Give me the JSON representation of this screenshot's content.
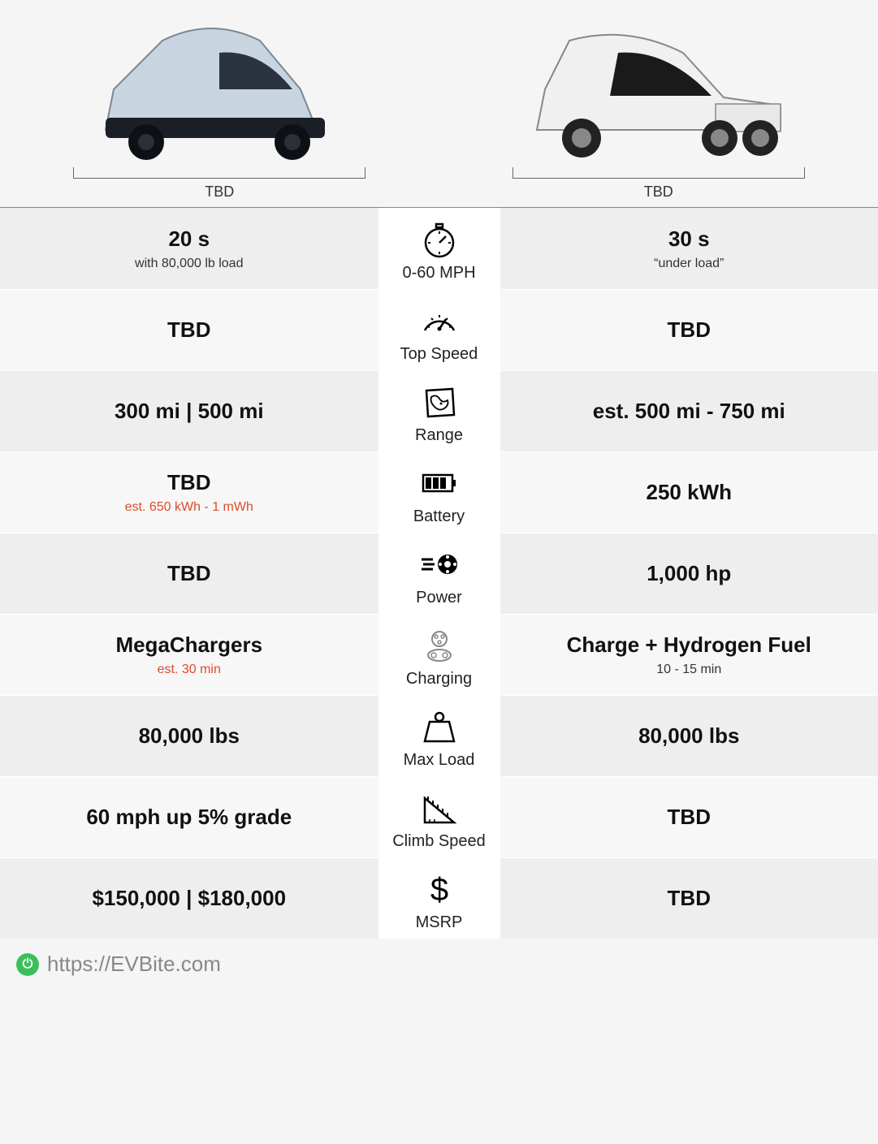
{
  "header": {
    "left_label": "TBD",
    "right_label": "TBD"
  },
  "colors": {
    "odd_bg": "#eeeeee",
    "even_bg": "#f7f7f7",
    "mid_bg": "#ffffff",
    "est_color": "#e04a2a",
    "text_color": "#111111",
    "sub_color": "#333333",
    "footer_color": "#888888",
    "logo_color": "#3bbf5a"
  },
  "rows": [
    {
      "icon": "stopwatch",
      "label": "0-60 MPH",
      "left": {
        "main": "20 s",
        "sub": "with 80,000 lb load"
      },
      "right": {
        "main": "30 s",
        "sub": "“under load”"
      }
    },
    {
      "icon": "speedo",
      "label": "Top Speed",
      "left": {
        "main": "TBD"
      },
      "right": {
        "main": "TBD"
      }
    },
    {
      "icon": "map",
      "label": "Range",
      "left": {
        "main": "300 mi | 500 mi"
      },
      "right": {
        "main": "est. 500 mi - 750 mi"
      }
    },
    {
      "icon": "battery",
      "label": "Battery",
      "left": {
        "main": "TBD",
        "est": "est. 650 kWh - 1 mWh"
      },
      "right": {
        "main": "250 kWh"
      }
    },
    {
      "icon": "wheel",
      "label": "Power",
      "left": {
        "main": "TBD"
      },
      "right": {
        "main": "1,000 hp"
      }
    },
    {
      "icon": "charge",
      "label": "Charging",
      "left": {
        "main": "MegaChargers",
        "est": "est. 30 min"
      },
      "right": {
        "main": "Charge + Hydrogen Fuel",
        "sub": "10 - 15 min"
      }
    },
    {
      "icon": "weight",
      "label": "Max Load",
      "left": {
        "main": "80,000 lbs"
      },
      "right": {
        "main": "80,000 lbs"
      }
    },
    {
      "icon": "triangle",
      "label": "Climb Speed",
      "left": {
        "main": "60 mph up 5% grade"
      },
      "right": {
        "main": "TBD"
      }
    },
    {
      "icon": "dollar",
      "label": "MSRP",
      "left": {
        "main": "$150,000 | $180,000"
      },
      "right": {
        "main": "TBD"
      }
    }
  ],
  "footer": {
    "url": "https://EVBite.com"
  }
}
